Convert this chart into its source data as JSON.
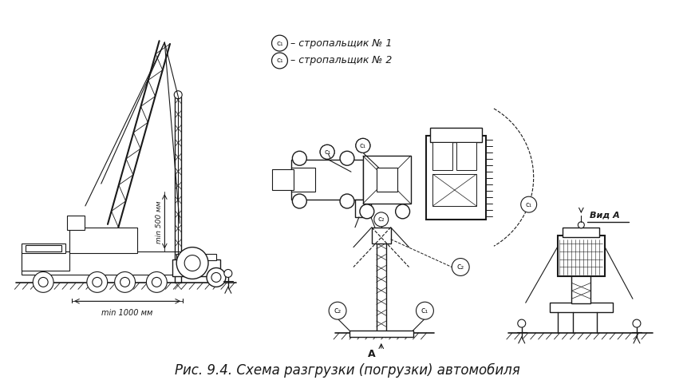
{
  "bg_color": "#ffffff",
  "line_color": "#1a1a1a",
  "title": "Рис. 9.4. Схема разгрузки (погрузки) автомобиля",
  "title_fontsize": 12,
  "legend_line1": "– стропальщик № 1",
  "legend_line2": "– стропальщик № 2",
  "label_min500": "min 500 мм",
  "label_min1000": "min 1000 мм",
  "label_vidA": "Вид А",
  "label_A": "А"
}
